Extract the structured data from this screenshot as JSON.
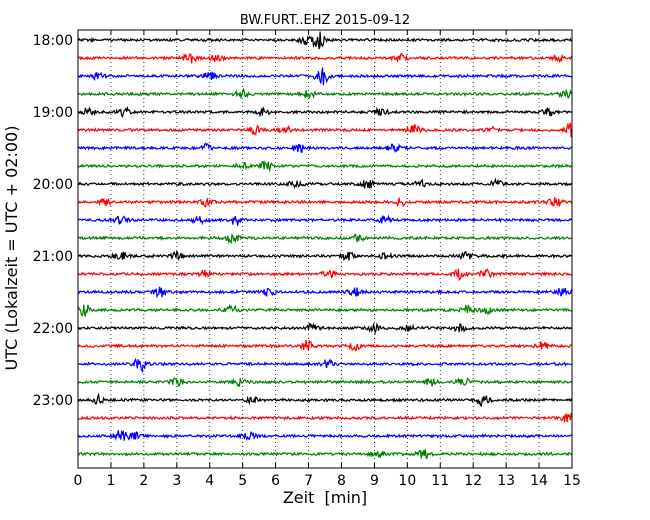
{
  "chart_data": {
    "type": "line",
    "title": "BW.FURT..EHZ 2015-09-12",
    "xlabel": "Zeit  [min]",
    "ylabel": "UTC (Lokalzeit = UTC + 02:00)",
    "xlim": [
      0,
      15
    ],
    "x_ticks": [
      "0",
      "1",
      "2",
      "3",
      "4",
      "5",
      "6",
      "7",
      "8",
      "9",
      "10",
      "11",
      "12",
      "13",
      "14",
      "15"
    ],
    "y_ticks": [
      "18:00",
      "19:00",
      "20:00",
      "21:00",
      "22:00",
      "23:00"
    ],
    "grid": "vertical dotted",
    "series_colors": [
      "#000000",
      "#ff0000",
      "#0000ff",
      "#008000"
    ],
    "traces": [
      {
        "start": "18:00",
        "events": [
          [
            7.3,
            0.8
          ],
          [
            6.9,
            0.35
          ]
        ]
      },
      {
        "start": "18:15",
        "events": [
          [
            3.4,
            0.4
          ],
          [
            4.2,
            0.3
          ],
          [
            9.8,
            0.3
          ],
          [
            14.6,
            0.25
          ]
        ]
      },
      {
        "start": "18:30",
        "events": [
          [
            0.6,
            0.3
          ],
          [
            7.4,
            0.85
          ],
          [
            4.0,
            0.3
          ]
        ]
      },
      {
        "start": "18:45",
        "events": [
          [
            5.0,
            0.35
          ],
          [
            7.0,
            0.35
          ],
          [
            14.8,
            0.3
          ]
        ]
      },
      {
        "start": "19:00",
        "events": [
          [
            0.3,
            0.3
          ],
          [
            1.4,
            0.35
          ],
          [
            5.6,
            0.3
          ],
          [
            9.2,
            0.3
          ],
          [
            14.3,
            0.3
          ]
        ]
      },
      {
        "start": "19:15",
        "events": [
          [
            5.4,
            0.4
          ],
          [
            6.3,
            0.3
          ],
          [
            10.2,
            0.4
          ],
          [
            12.5,
            0.3
          ],
          [
            15.0,
            0.6
          ]
        ]
      },
      {
        "start": "19:30",
        "events": [
          [
            3.9,
            0.3
          ],
          [
            6.7,
            0.35
          ],
          [
            9.6,
            0.3
          ]
        ]
      },
      {
        "start": "19:45",
        "events": [
          [
            5.7,
            0.4
          ],
          [
            5.0,
            0.3
          ]
        ]
      },
      {
        "start": "20:00",
        "events": [
          [
            6.6,
            0.3
          ],
          [
            8.8,
            0.35
          ],
          [
            10.4,
            0.3
          ],
          [
            12.7,
            0.3
          ]
        ]
      },
      {
        "start": "20:15",
        "events": [
          [
            0.8,
            0.3
          ],
          [
            3.9,
            0.3
          ],
          [
            9.8,
            0.3
          ],
          [
            14.5,
            0.4
          ]
        ]
      },
      {
        "start": "20:30",
        "events": [
          [
            1.3,
            0.3
          ],
          [
            3.7,
            0.35
          ],
          [
            4.8,
            0.4
          ],
          [
            9.3,
            0.3
          ]
        ]
      },
      {
        "start": "20:45",
        "events": [
          [
            4.7,
            0.35
          ],
          [
            8.5,
            0.25
          ]
        ]
      },
      {
        "start": "21:00",
        "events": [
          [
            1.3,
            0.35
          ],
          [
            3.0,
            0.3
          ],
          [
            8.2,
            0.35
          ],
          [
            9.3,
            0.3
          ],
          [
            11.8,
            0.3
          ]
        ]
      },
      {
        "start": "21:15",
        "events": [
          [
            3.8,
            0.3
          ],
          [
            7.6,
            0.3
          ],
          [
            11.6,
            0.4
          ],
          [
            12.4,
            0.3
          ]
        ]
      },
      {
        "start": "21:30",
        "events": [
          [
            2.5,
            0.4
          ],
          [
            5.8,
            0.35
          ],
          [
            8.4,
            0.35
          ],
          [
            14.7,
            0.3
          ]
        ]
      },
      {
        "start": "21:45",
        "events": [
          [
            0.2,
            0.5
          ],
          [
            4.7,
            0.35
          ],
          [
            11.8,
            0.45
          ],
          [
            12.4,
            0.3
          ]
        ]
      },
      {
        "start": "22:00",
        "events": [
          [
            7.1,
            0.3
          ],
          [
            9.0,
            0.3
          ],
          [
            10.0,
            0.3
          ],
          [
            11.6,
            0.3
          ]
        ]
      },
      {
        "start": "22:15",
        "events": [
          [
            7.0,
            0.5
          ],
          [
            8.4,
            0.3
          ],
          [
            14.1,
            0.3
          ]
        ]
      },
      {
        "start": "22:30",
        "events": [
          [
            1.9,
            0.6
          ],
          [
            7.6,
            0.3
          ]
        ]
      },
      {
        "start": "22:45",
        "events": [
          [
            3.0,
            0.35
          ],
          [
            4.9,
            0.3
          ],
          [
            10.7,
            0.3
          ],
          [
            11.7,
            0.3
          ]
        ]
      },
      {
        "start": "23:00",
        "events": [
          [
            0.6,
            0.4
          ],
          [
            12.3,
            0.45
          ],
          [
            5.3,
            0.2
          ]
        ]
      },
      {
        "start": "23:15",
        "events": [
          [
            14.9,
            0.4
          ]
        ]
      },
      {
        "start": "23:30",
        "events": [
          [
            1.3,
            0.5
          ],
          [
            5.2,
            0.3
          ],
          [
            1.7,
            0.3
          ]
        ]
      },
      {
        "start": "23:45",
        "events": [
          [
            9.1,
            0.4
          ],
          [
            10.5,
            0.35
          ]
        ]
      }
    ]
  }
}
